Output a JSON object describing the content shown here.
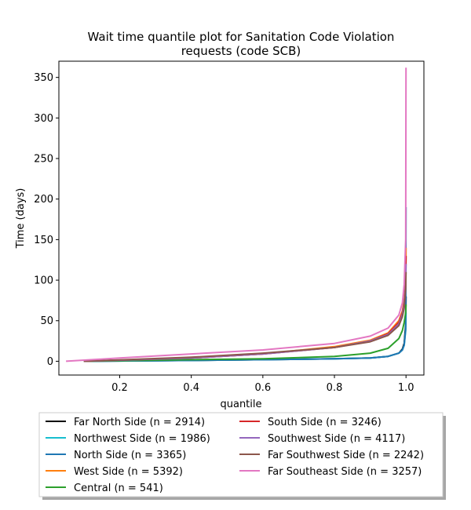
{
  "chart_data": {
    "type": "line",
    "title": [
      "Wait time quantile plot for Sanitation Code Violation",
      "requests (code SCB)"
    ],
    "xlabel": "quantile",
    "ylabel": "Time (days)",
    "xlim": [
      0.03,
      1.05
    ],
    "ylim": [
      -17,
      370
    ],
    "xticks": [
      0.2,
      0.4,
      0.6,
      0.8,
      1.0
    ],
    "xtick_labels": [
      "0.2",
      "0.4",
      "0.6",
      "0.8",
      "1.0"
    ],
    "yticks": [
      0,
      50,
      100,
      150,
      200,
      250,
      300,
      350
    ],
    "ytick_labels": [
      "0",
      "50",
      "100",
      "150",
      "200",
      "250",
      "300",
      "350"
    ],
    "grid": false,
    "legend_position": "below-plot",
    "legend_columns": 2,
    "series": [
      {
        "name": "Far North Side (n = 2914)",
        "color": "#000000",
        "x": [
          0.1,
          0.4,
          0.6,
          0.8,
          0.9,
          0.95,
          0.98,
          0.99,
          0.995,
          0.999,
          1.0
        ],
        "y": [
          0,
          1,
          2,
          3,
          4,
          6,
          10,
          15,
          22,
          45,
          80
        ]
      },
      {
        "name": "Northwest Side (n = 1986)",
        "color": "#17becf",
        "x": [
          0.1,
          0.4,
          0.6,
          0.8,
          0.9,
          0.95,
          0.98,
          0.99,
          0.995,
          0.999,
          1.0
        ],
        "y": [
          0,
          1,
          2,
          3,
          4,
          6,
          10,
          14,
          20,
          38,
          60
        ]
      },
      {
        "name": "North Side (n = 3365)",
        "color": "#1f77b4",
        "x": [
          0.1,
          0.4,
          0.6,
          0.8,
          0.9,
          0.95,
          0.98,
          0.99,
          0.995,
          0.999,
          1.0
        ],
        "y": [
          0,
          1,
          2,
          3,
          4,
          6,
          10,
          14,
          20,
          40,
          190
        ]
      },
      {
        "name": "West Side (n = 5392)",
        "color": "#ff7f0e",
        "x": [
          0.1,
          0.4,
          0.6,
          0.8,
          0.9,
          0.95,
          0.98,
          0.99,
          0.995,
          0.999,
          1.0
        ],
        "y": [
          0,
          4,
          9,
          18,
          26,
          35,
          50,
          62,
          75,
          100,
          140
        ]
      },
      {
        "name": "Central (n = 541)",
        "color": "#2ca02c",
        "x": [
          0.1,
          0.4,
          0.6,
          0.8,
          0.9,
          0.95,
          0.98,
          0.99,
          0.995,
          0.999,
          1.0
        ],
        "y": [
          0,
          2,
          3,
          6,
          10,
          16,
          28,
          38,
          48,
          60,
          70
        ]
      },
      {
        "name": "South Side (n = 3246)",
        "color": "#d62728",
        "x": [
          0.1,
          0.4,
          0.6,
          0.8,
          0.9,
          0.95,
          0.98,
          0.99,
          0.995,
          0.999,
          1.0
        ],
        "y": [
          0,
          4,
          9,
          17,
          25,
          34,
          48,
          60,
          72,
          95,
          130
        ]
      },
      {
        "name": "Southwest Side (n = 4117)",
        "color": "#9467bd",
        "x": [
          0.1,
          0.4,
          0.6,
          0.8,
          0.9,
          0.95,
          0.98,
          0.99,
          0.995,
          0.999,
          1.0
        ],
        "y": [
          0,
          4,
          9,
          17,
          25,
          33,
          46,
          58,
          70,
          92,
          120
        ]
      },
      {
        "name": "Far Southwest Side (n = 2242)",
        "color": "#8c564b",
        "x": [
          0.1,
          0.4,
          0.6,
          0.8,
          0.9,
          0.95,
          0.98,
          0.99,
          0.995,
          0.999,
          1.0
        ],
        "y": [
          0,
          5,
          10,
          17,
          24,
          32,
          44,
          55,
          66,
          90,
          110
        ]
      },
      {
        "name": "Far Southeast Side (n = 3257)",
        "color": "#e377c2",
        "x": [
          0.05,
          0.2,
          0.4,
          0.6,
          0.8,
          0.9,
          0.95,
          0.98,
          0.99,
          0.995,
          0.999,
          1.0
        ],
        "y": [
          0,
          4,
          9,
          14,
          22,
          31,
          41,
          57,
          72,
          95,
          150,
          362
        ]
      }
    ]
  }
}
